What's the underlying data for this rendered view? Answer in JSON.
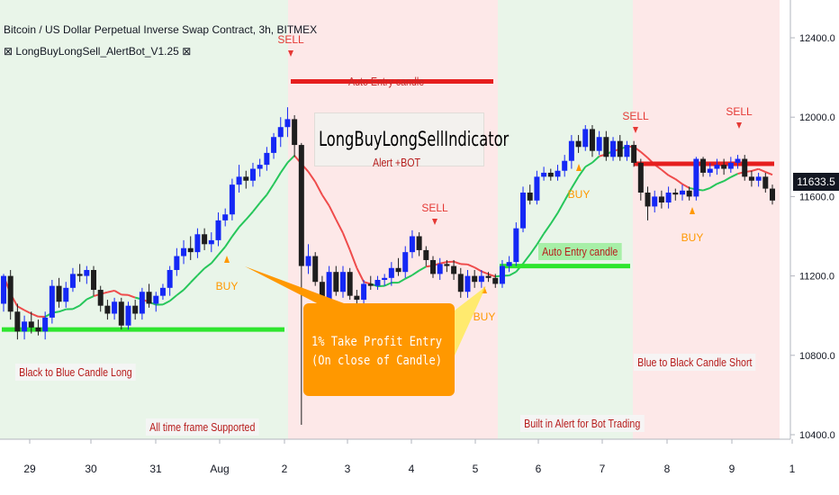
{
  "header": {
    "title": "Bitcoin / US Dollar Perpetual Inverse Swap Contract, 3h, BITMEX",
    "indicator": "⊠ LongBuyLongSell_AlertBot_V1.25 ⊠"
  },
  "colors": {
    "bull_candle": "#1528f5",
    "bear_candle": "#1e1e1e",
    "long_zone": "#e9f5e9",
    "short_zone": "#fde8e8",
    "ma_bull": "#26c65a",
    "ma_bear": "#ef4b4b",
    "level_green": "#2ee52e",
    "level_red": "#e61e1e",
    "arrow": "#ff9800",
    "annotation_text": "#b71c1c"
  },
  "annotations": {
    "auto_entry_top": "Auto Entry candle",
    "indicator_name": "LongBuyLongSellIndicator",
    "alert_bot": "Alert +BOT",
    "auto_entry_mid": "Auto Entry candle",
    "black_to_blue": "Black to Blue Candle Long",
    "all_timeframe": "All time frame Supported",
    "take_profit_line1": "1% Take Profit Entry",
    "take_profit_line2": "(On close of Candle)",
    "built_in_alert": "Built in Alert for Bot Trading",
    "blue_to_black": "Blue to Black Candle Short"
  },
  "chart_data": {
    "type": "candlestick",
    "x_labels": [
      "29",
      "30",
      "31",
      "Aug",
      "2",
      "3",
      "4",
      "5",
      "6",
      "7",
      "8",
      "9",
      "1"
    ],
    "y_ticks": [
      "12400.0",
      "12000.0",
      "11600.0",
      "11200.0",
      "10800.0",
      "10400.0"
    ],
    "last_price": "11633.5",
    "signals": [
      {
        "label": "BUY",
        "x": "31.8"
      },
      {
        "label": "SELL",
        "x": "2.0"
      },
      {
        "label": "SELL",
        "x": "4.35"
      },
      {
        "label": "BUY",
        "x": "5.1"
      },
      {
        "label": "BUY",
        "x": "6.6"
      },
      {
        "label": "SELL",
        "x": "7.5"
      },
      {
        "label": "BUY",
        "x": "8.35"
      },
      {
        "label": "SELL",
        "x": "9.15"
      }
    ],
    "levels": [
      {
        "label": "Auto Entry candle",
        "value": 12180,
        "color": "red"
      },
      {
        "label": "Auto Entry candle",
        "value": 11250,
        "color": "green"
      },
      {
        "value": 10930,
        "color": "green"
      },
      {
        "value": 11765,
        "color": "red"
      }
    ],
    "candles": [
      [
        11060,
        11200,
        11020,
        11210,
        1
      ],
      [
        11200,
        11020,
        10980,
        11230,
        0
      ],
      [
        11020,
        10920,
        10880,
        11060,
        0
      ],
      [
        10920,
        10970,
        10880,
        11000,
        1
      ],
      [
        10970,
        10940,
        10910,
        11020,
        0
      ],
      [
        10940,
        10920,
        10900,
        10980,
        0
      ],
      [
        10920,
        10990,
        10880,
        11020,
        1
      ],
      [
        10990,
        11150,
        10960,
        11180,
        1
      ],
      [
        11150,
        11070,
        11040,
        11190,
        0
      ],
      [
        11070,
        11140,
        11040,
        11170,
        1
      ],
      [
        11140,
        11210,
        11120,
        11240,
        1
      ],
      [
        11210,
        11200,
        11170,
        11260,
        0
      ],
      [
        11200,
        11230,
        11160,
        11250,
        1
      ],
      [
        11230,
        11130,
        11100,
        11250,
        0
      ],
      [
        11130,
        11050,
        11020,
        11150,
        0
      ],
      [
        11050,
        11010,
        10980,
        11080,
        0
      ],
      [
        11010,
        11070,
        10980,
        11090,
        1
      ],
      [
        11070,
        10950,
        10930,
        11090,
        0
      ],
      [
        10950,
        11050,
        10930,
        11070,
        1
      ],
      [
        11050,
        11010,
        10980,
        11080,
        0
      ],
      [
        11010,
        11120,
        10980,
        11140,
        1
      ],
      [
        11120,
        11060,
        11040,
        11160,
        0
      ],
      [
        11060,
        11100,
        11020,
        11120,
        1
      ],
      [
        11100,
        11140,
        11080,
        11160,
        1
      ],
      [
        11140,
        11230,
        11100,
        11250,
        1
      ],
      [
        11230,
        11300,
        11200,
        11340,
        1
      ],
      [
        11300,
        11340,
        11260,
        11380,
        1
      ],
      [
        11340,
        11320,
        11280,
        11400,
        0
      ],
      [
        11320,
        11410,
        11290,
        11440,
        1
      ],
      [
        11410,
        11360,
        11330,
        11440,
        0
      ],
      [
        11360,
        11380,
        11320,
        11420,
        1
      ],
      [
        11380,
        11480,
        11350,
        11520,
        1
      ],
      [
        11480,
        11510,
        11450,
        11540,
        1
      ],
      [
        11510,
        11660,
        11480,
        11690,
        1
      ],
      [
        11660,
        11700,
        11620,
        11760,
        1
      ],
      [
        11700,
        11680,
        11640,
        11730,
        0
      ],
      [
        11680,
        11740,
        11650,
        11770,
        1
      ],
      [
        11740,
        11760,
        11700,
        11790,
        1
      ],
      [
        11760,
        11820,
        11730,
        11850,
        1
      ],
      [
        11820,
        11900,
        11790,
        11920,
        1
      ],
      [
        11900,
        11950,
        11850,
        12000,
        1
      ],
      [
        11950,
        11990,
        11900,
        12050,
        1
      ],
      [
        11990,
        11860,
        11800,
        12010,
        0
      ],
      [
        11860,
        11250,
        10450,
        11870,
        0
      ],
      [
        11250,
        11300,
        11210,
        11360,
        1
      ],
      [
        11300,
        11170,
        11150,
        11320,
        0
      ],
      [
        11170,
        11080,
        11050,
        11200,
        0
      ],
      [
        11080,
        11220,
        11050,
        11250,
        1
      ],
      [
        11220,
        11120,
        11100,
        11250,
        0
      ],
      [
        11120,
        11220,
        11090,
        11250,
        1
      ],
      [
        11220,
        11100,
        11080,
        11240,
        0
      ],
      [
        11100,
        11080,
        11050,
        11130,
        0
      ],
      [
        11080,
        11160,
        11050,
        11180,
        1
      ],
      [
        11160,
        11150,
        11130,
        11200,
        0
      ],
      [
        11150,
        11180,
        11130,
        11200,
        1
      ],
      [
        11180,
        11190,
        11150,
        11210,
        1
      ],
      [
        11190,
        11240,
        11150,
        11270,
        1
      ],
      [
        11240,
        11220,
        11200,
        11290,
        0
      ],
      [
        11220,
        11320,
        11190,
        11350,
        1
      ],
      [
        11320,
        11400,
        11290,
        11430,
        1
      ],
      [
        11400,
        11330,
        11300,
        11420,
        0
      ],
      [
        11330,
        11280,
        11250,
        11350,
        0
      ],
      [
        11280,
        11210,
        11190,
        11300,
        0
      ],
      [
        11210,
        11260,
        11180,
        11290,
        1
      ],
      [
        11260,
        11250,
        11220,
        11280,
        0
      ],
      [
        11250,
        11210,
        11180,
        11280,
        0
      ],
      [
        11210,
        11120,
        11090,
        11240,
        0
      ],
      [
        11120,
        11200,
        11090,
        11230,
        1
      ],
      [
        11200,
        11170,
        11140,
        11230,
        0
      ],
      [
        11170,
        11200,
        11140,
        11230,
        1
      ],
      [
        11200,
        11190,
        11170,
        11220,
        0
      ],
      [
        11190,
        11160,
        11140,
        11210,
        0
      ],
      [
        11160,
        11250,
        11140,
        11280,
        1
      ],
      [
        11250,
        11270,
        11220,
        11300,
        1
      ],
      [
        11270,
        11440,
        11250,
        11470,
        1
      ],
      [
        11440,
        11620,
        11420,
        11650,
        1
      ],
      [
        11620,
        11580,
        11560,
        11660,
        0
      ],
      [
        11580,
        11700,
        11560,
        11730,
        1
      ],
      [
        11700,
        11720,
        11680,
        11750,
        1
      ],
      [
        11720,
        11700,
        11680,
        11740,
        0
      ],
      [
        11700,
        11730,
        11680,
        11760,
        1
      ],
      [
        11730,
        11780,
        11700,
        11810,
        1
      ],
      [
        11780,
        11880,
        11740,
        11910,
        1
      ],
      [
        11880,
        11850,
        11820,
        11910,
        0
      ],
      [
        11850,
        11940,
        11830,
        11960,
        1
      ],
      [
        11940,
        11830,
        11800,
        11960,
        0
      ],
      [
        11830,
        11900,
        11810,
        11930,
        1
      ],
      [
        11900,
        11800,
        11780,
        11930,
        0
      ],
      [
        11800,
        11880,
        11780,
        11900,
        1
      ],
      [
        11880,
        11800,
        11780,
        11910,
        0
      ],
      [
        11800,
        11860,
        11780,
        11880,
        1
      ],
      [
        11860,
        11770,
        11750,
        11880,
        0
      ],
      [
        11770,
        11620,
        11580,
        11790,
        0
      ],
      [
        11620,
        11550,
        11480,
        11650,
        0
      ],
      [
        11550,
        11600,
        11520,
        11630,
        1
      ],
      [
        11600,
        11570,
        11540,
        11630,
        0
      ],
      [
        11570,
        11620,
        11540,
        11650,
        1
      ],
      [
        11620,
        11610,
        11580,
        11640,
        0
      ],
      [
        11610,
        11630,
        11580,
        11660,
        1
      ],
      [
        11630,
        11600,
        11580,
        11650,
        0
      ],
      [
        11600,
        11790,
        11580,
        11800,
        1
      ],
      [
        11790,
        11720,
        11700,
        11800,
        0
      ],
      [
        11720,
        11740,
        11700,
        11770,
        1
      ],
      [
        11740,
        11760,
        11710,
        11790,
        1
      ],
      [
        11760,
        11740,
        11710,
        11790,
        0
      ],
      [
        11740,
        11770,
        11720,
        11800,
        1
      ],
      [
        11770,
        11790,
        11740,
        11810,
        1
      ],
      [
        11790,
        11700,
        11680,
        11810,
        0
      ],
      [
        11700,
        11680,
        11650,
        11730,
        0
      ],
      [
        11680,
        11700,
        11650,
        11720,
        1
      ],
      [
        11700,
        11640,
        11620,
        11720,
        0
      ],
      [
        11640,
        11580,
        11560,
        11660,
        0
      ]
    ]
  }
}
